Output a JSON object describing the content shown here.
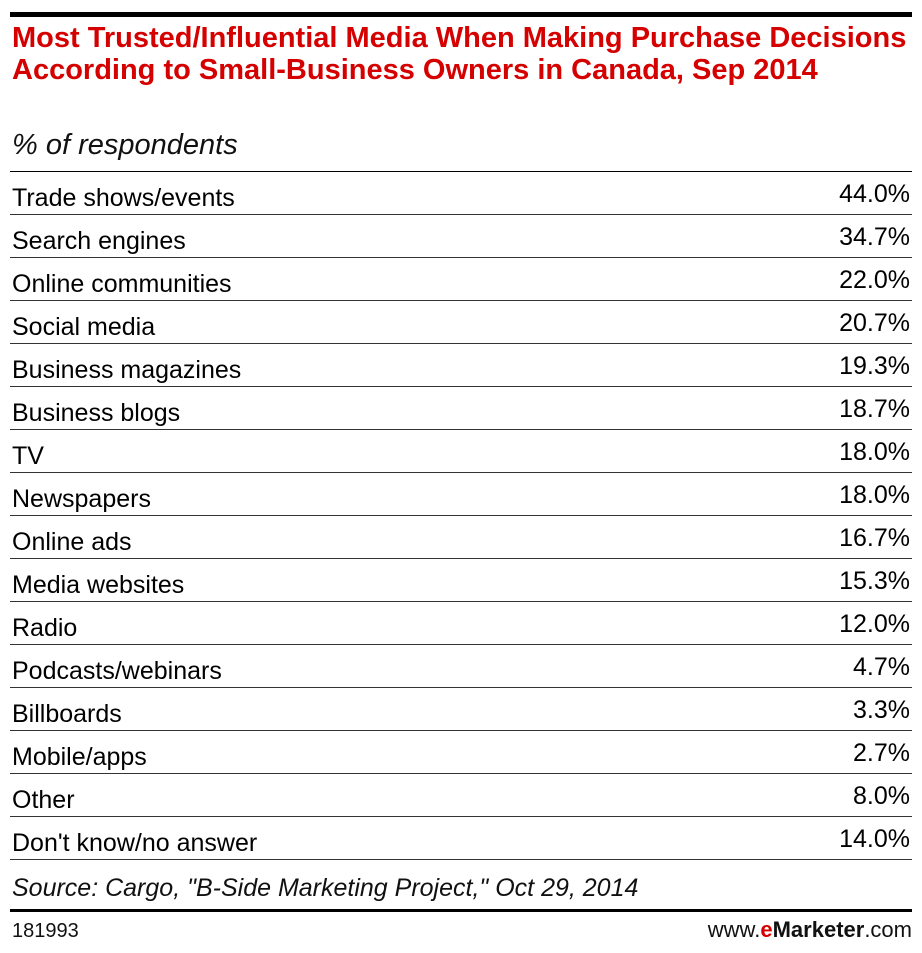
{
  "chart_data": {
    "type": "table",
    "title": "Most Trusted/Influential Media When Making Purchase Decisions According to Small-Business Owners in Canada, Sep 2014",
    "subtitle": "% of respondents",
    "rows": [
      {
        "label": "Trade shows/events",
        "value": "44.0%"
      },
      {
        "label": "Search engines",
        "value": "34.7%"
      },
      {
        "label": "Online communities",
        "value": "22.0%"
      },
      {
        "label": "Social media",
        "value": "20.7%"
      },
      {
        "label": "Business magazines",
        "value": "19.3%"
      },
      {
        "label": "Business blogs",
        "value": "18.7%"
      },
      {
        "label": "TV",
        "value": "18.0%"
      },
      {
        "label": "Newspapers",
        "value": "18.0%"
      },
      {
        "label": "Online ads",
        "value": "16.7%"
      },
      {
        "label": "Media websites",
        "value": "15.3%"
      },
      {
        "label": "Radio",
        "value": "12.0%"
      },
      {
        "label": "Podcasts/webinars",
        "value": "4.7%"
      },
      {
        "label": "Billboards",
        "value": "3.3%"
      },
      {
        "label": "Mobile/apps",
        "value": "2.7%"
      },
      {
        "label": "Other",
        "value": "8.0%"
      },
      {
        "label": "Don't know/no answer",
        "value": "14.0%"
      }
    ],
    "source": "Source: Cargo, \"B-Side Marketing Project,\" Oct 29, 2014"
  },
  "footer": {
    "chart_id": "181993",
    "brand_prefix": "www.",
    "brand_e": "e",
    "brand_marketer": "Marketer",
    "brand_suffix": ".com"
  },
  "colors": {
    "title": "#d50000",
    "brand_accent": "#d50000"
  }
}
